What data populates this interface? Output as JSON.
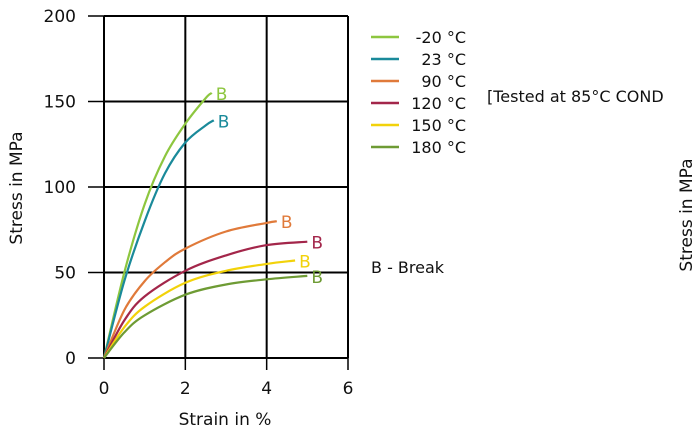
{
  "chart_data": {
    "type": "line",
    "xlabel": "Strain in %",
    "ylabel": "Stress in MPa",
    "xlim": [
      0,
      6
    ],
    "ylim": [
      0,
      200
    ],
    "xticks": [
      "0",
      "2",
      "4",
      "6"
    ],
    "yticks": [
      "0",
      "50",
      "100",
      "150",
      "200"
    ],
    "grid": true,
    "legend_position": "right",
    "break_marker": "B",
    "legend_note": "B - Break",
    "series": [
      {
        "name": "-20 °C",
        "color": "#8dc63f",
        "break": true,
        "points": [
          [
            0,
            0
          ],
          [
            0.5,
            50
          ],
          [
            1.0,
            90
          ],
          [
            1.5,
            118
          ],
          [
            2.0,
            137
          ],
          [
            2.5,
            152
          ],
          [
            2.65,
            155
          ]
        ]
      },
      {
        "name": "23 °C",
        "color": "#1a8a9a",
        "break": true,
        "points": [
          [
            0,
            0
          ],
          [
            0.5,
            45
          ],
          [
            1.0,
            80
          ],
          [
            1.5,
            108
          ],
          [
            2.0,
            126
          ],
          [
            2.5,
            136
          ],
          [
            2.7,
            139
          ]
        ]
      },
      {
        "name": "90 °C",
        "color": "#e07a3a",
        "break": true,
        "points": [
          [
            0,
            0
          ],
          [
            0.5,
            28
          ],
          [
            1.0,
            45
          ],
          [
            1.5,
            56
          ],
          [
            2.0,
            64
          ],
          [
            3.0,
            74
          ],
          [
            4.0,
            79
          ],
          [
            4.25,
            80
          ]
        ]
      },
      {
        "name": "120 °C",
        "color": "#a3264a",
        "break": true,
        "points": [
          [
            0,
            0
          ],
          [
            0.5,
            22
          ],
          [
            1.0,
            36
          ],
          [
            2.0,
            51
          ],
          [
            3.0,
            60
          ],
          [
            4.0,
            66
          ],
          [
            5.0,
            68
          ]
        ]
      },
      {
        "name": "150 °C",
        "color": "#f2d20a",
        "break": true,
        "points": [
          [
            0,
            0
          ],
          [
            0.5,
            18
          ],
          [
            1.0,
            30
          ],
          [
            2.0,
            44
          ],
          [
            3.0,
            51
          ],
          [
            4.0,
            55
          ],
          [
            4.7,
            57
          ]
        ]
      },
      {
        "name": "180 °C",
        "color": "#6e9b34",
        "break": true,
        "points": [
          [
            0,
            0
          ],
          [
            0.5,
            15
          ],
          [
            1.0,
            25
          ],
          [
            2.0,
            37
          ],
          [
            3.0,
            43
          ],
          [
            4.0,
            46
          ],
          [
            5.0,
            48
          ]
        ]
      }
    ],
    "annotation": "[Tested at 85°C COND",
    "second_panel_ylabel": "Stress in MPa"
  }
}
